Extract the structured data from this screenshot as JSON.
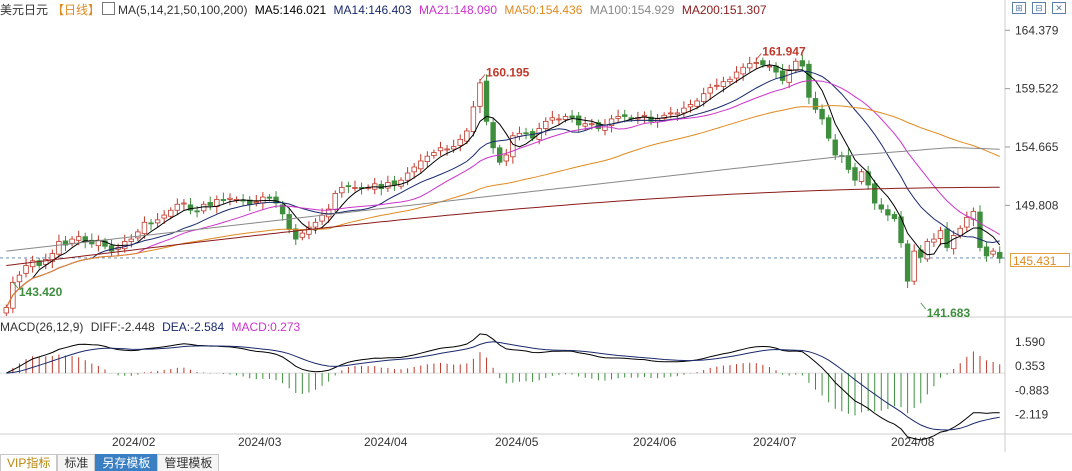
{
  "header": {
    "instrument": "美元日元",
    "period": "【日线】",
    "ma_params": "MA(5,14,21,50,100,200)",
    "ma5": "MA5:146.021",
    "ma14": "MA14:146.403",
    "ma21": "MA21:148.090",
    "ma50": "MA50:154.436",
    "ma100": "MA100:154.929",
    "ma200": "MA200:151.307"
  },
  "macd_header": {
    "params": "MACD(26,12,9)",
    "diff": "DIFF:-2.448",
    "dea": "DEA:-2.584",
    "macd": "MACD:0.273"
  },
  "tabs": [
    "VIP指标",
    "标准",
    "另存模板",
    "管理模板"
  ],
  "last_price_label": "145.431",
  "colors": {
    "up": "#c0392b",
    "down": "#3e8e3e",
    "ma5": "#000000",
    "ma14": "#1a2a6c",
    "ma21": "#cc33cc",
    "ma50": "#e08a20",
    "ma100": "#888888",
    "ma200": "#8b1a1a",
    "diff": "#000000",
    "dea": "#1a2a6c"
  },
  "chart_data": {
    "type": "candlestick",
    "x_axis_labels": [
      "2024/02",
      "2024/03",
      "2024/04",
      "2024/05",
      "2024/06",
      "2024/07",
      "2024/08"
    ],
    "price_axis": {
      "ticks": [
        "164.379",
        "159.522",
        "154.665",
        "149.808"
      ],
      "range": [
        140.6,
        165.4
      ]
    },
    "annotations": [
      {
        "label": "160.195",
        "x": "2024/04/29",
        "value": 160.195,
        "type": "high"
      },
      {
        "label": "161.947",
        "x": "2024/07/03",
        "value": 161.947,
        "type": "high"
      },
      {
        "label": "143.420",
        "x": "2024/01/02",
        "value": 143.42,
        "type": "low"
      },
      {
        "label": "141.683",
        "x": "2024/08/05",
        "value": 141.683,
        "type": "low"
      }
    ],
    "last_close": 145.431,
    "ma_end_values": {
      "MA5": 146.021,
      "MA14": 146.403,
      "MA21": 148.09,
      "MA50": 154.436,
      "MA100": 154.929,
      "MA200": 151.307
    },
    "close_series": [
      141.3,
      143.4,
      144.0,
      144.8,
      145.2,
      144.8,
      145.3,
      145.8,
      146.8,
      146.5,
      147.0,
      147.2,
      146.8,
      146.6,
      146.9,
      146.4,
      146.0,
      146.3,
      146.8,
      147.0,
      147.6,
      148.4,
      148.3,
      148.6,
      149.0,
      149.4,
      149.9,
      150.0,
      149.4,
      149.3,
      149.9,
      149.8,
      150.3,
      150.2,
      150.4,
      150.3,
      150.2,
      149.9,
      150.1,
      150.5,
      150.4,
      150.0,
      149.1,
      147.8,
      147.0,
      147.5,
      148.0,
      148.4,
      149.0,
      149.5,
      150.8,
      151.3,
      151.4,
      151.3,
      151.2,
      151.3,
      151.6,
      151.2,
      151.7,
      151.5,
      151.9,
      152.5,
      153.0,
      153.5,
      153.9,
      154.2,
      154.6,
      154.5,
      154.7,
      155.3,
      156.0,
      158.0,
      160.0,
      156.8,
      154.6,
      153.4,
      154.0,
      155.6,
      155.8,
      155.8,
      155.4,
      156.2,
      156.8,
      157.1,
      157.0,
      157.2,
      157.1,
      156.5,
      156.6,
      156.6,
      156.2,
      156.5,
      157.0,
      157.2,
      157.2,
      157.0,
      157.1,
      157.3,
      156.8,
      157.0,
      157.3,
      157.5,
      157.5,
      157.9,
      158.2,
      158.5,
      159.1,
      159.6,
      159.8,
      160.1,
      160.3,
      160.9,
      161.3,
      161.6,
      161.7,
      161.5,
      161.4,
      160.9,
      160.2,
      161.1,
      161.8,
      161.4,
      158.8,
      157.8,
      157.0,
      155.4,
      154.0,
      153.9,
      152.8,
      151.9,
      152.6,
      151.5,
      150.0,
      149.5,
      149.0,
      148.7,
      146.7,
      143.5,
      146.0,
      145.5,
      146.8,
      147.0,
      147.7,
      146.3,
      147.3,
      147.9,
      148.8,
      149.3,
      146.3,
      145.6,
      146.0,
      145.4
    ],
    "macd": {
      "axis_ticks": [
        "1.590",
        "0.353",
        "-0.883",
        "-2.119"
      ],
      "range": [
        -2.9,
        2.2
      ],
      "diff_end": -2.448,
      "dea_end": -2.584,
      "hist_end": 0.273
    }
  }
}
